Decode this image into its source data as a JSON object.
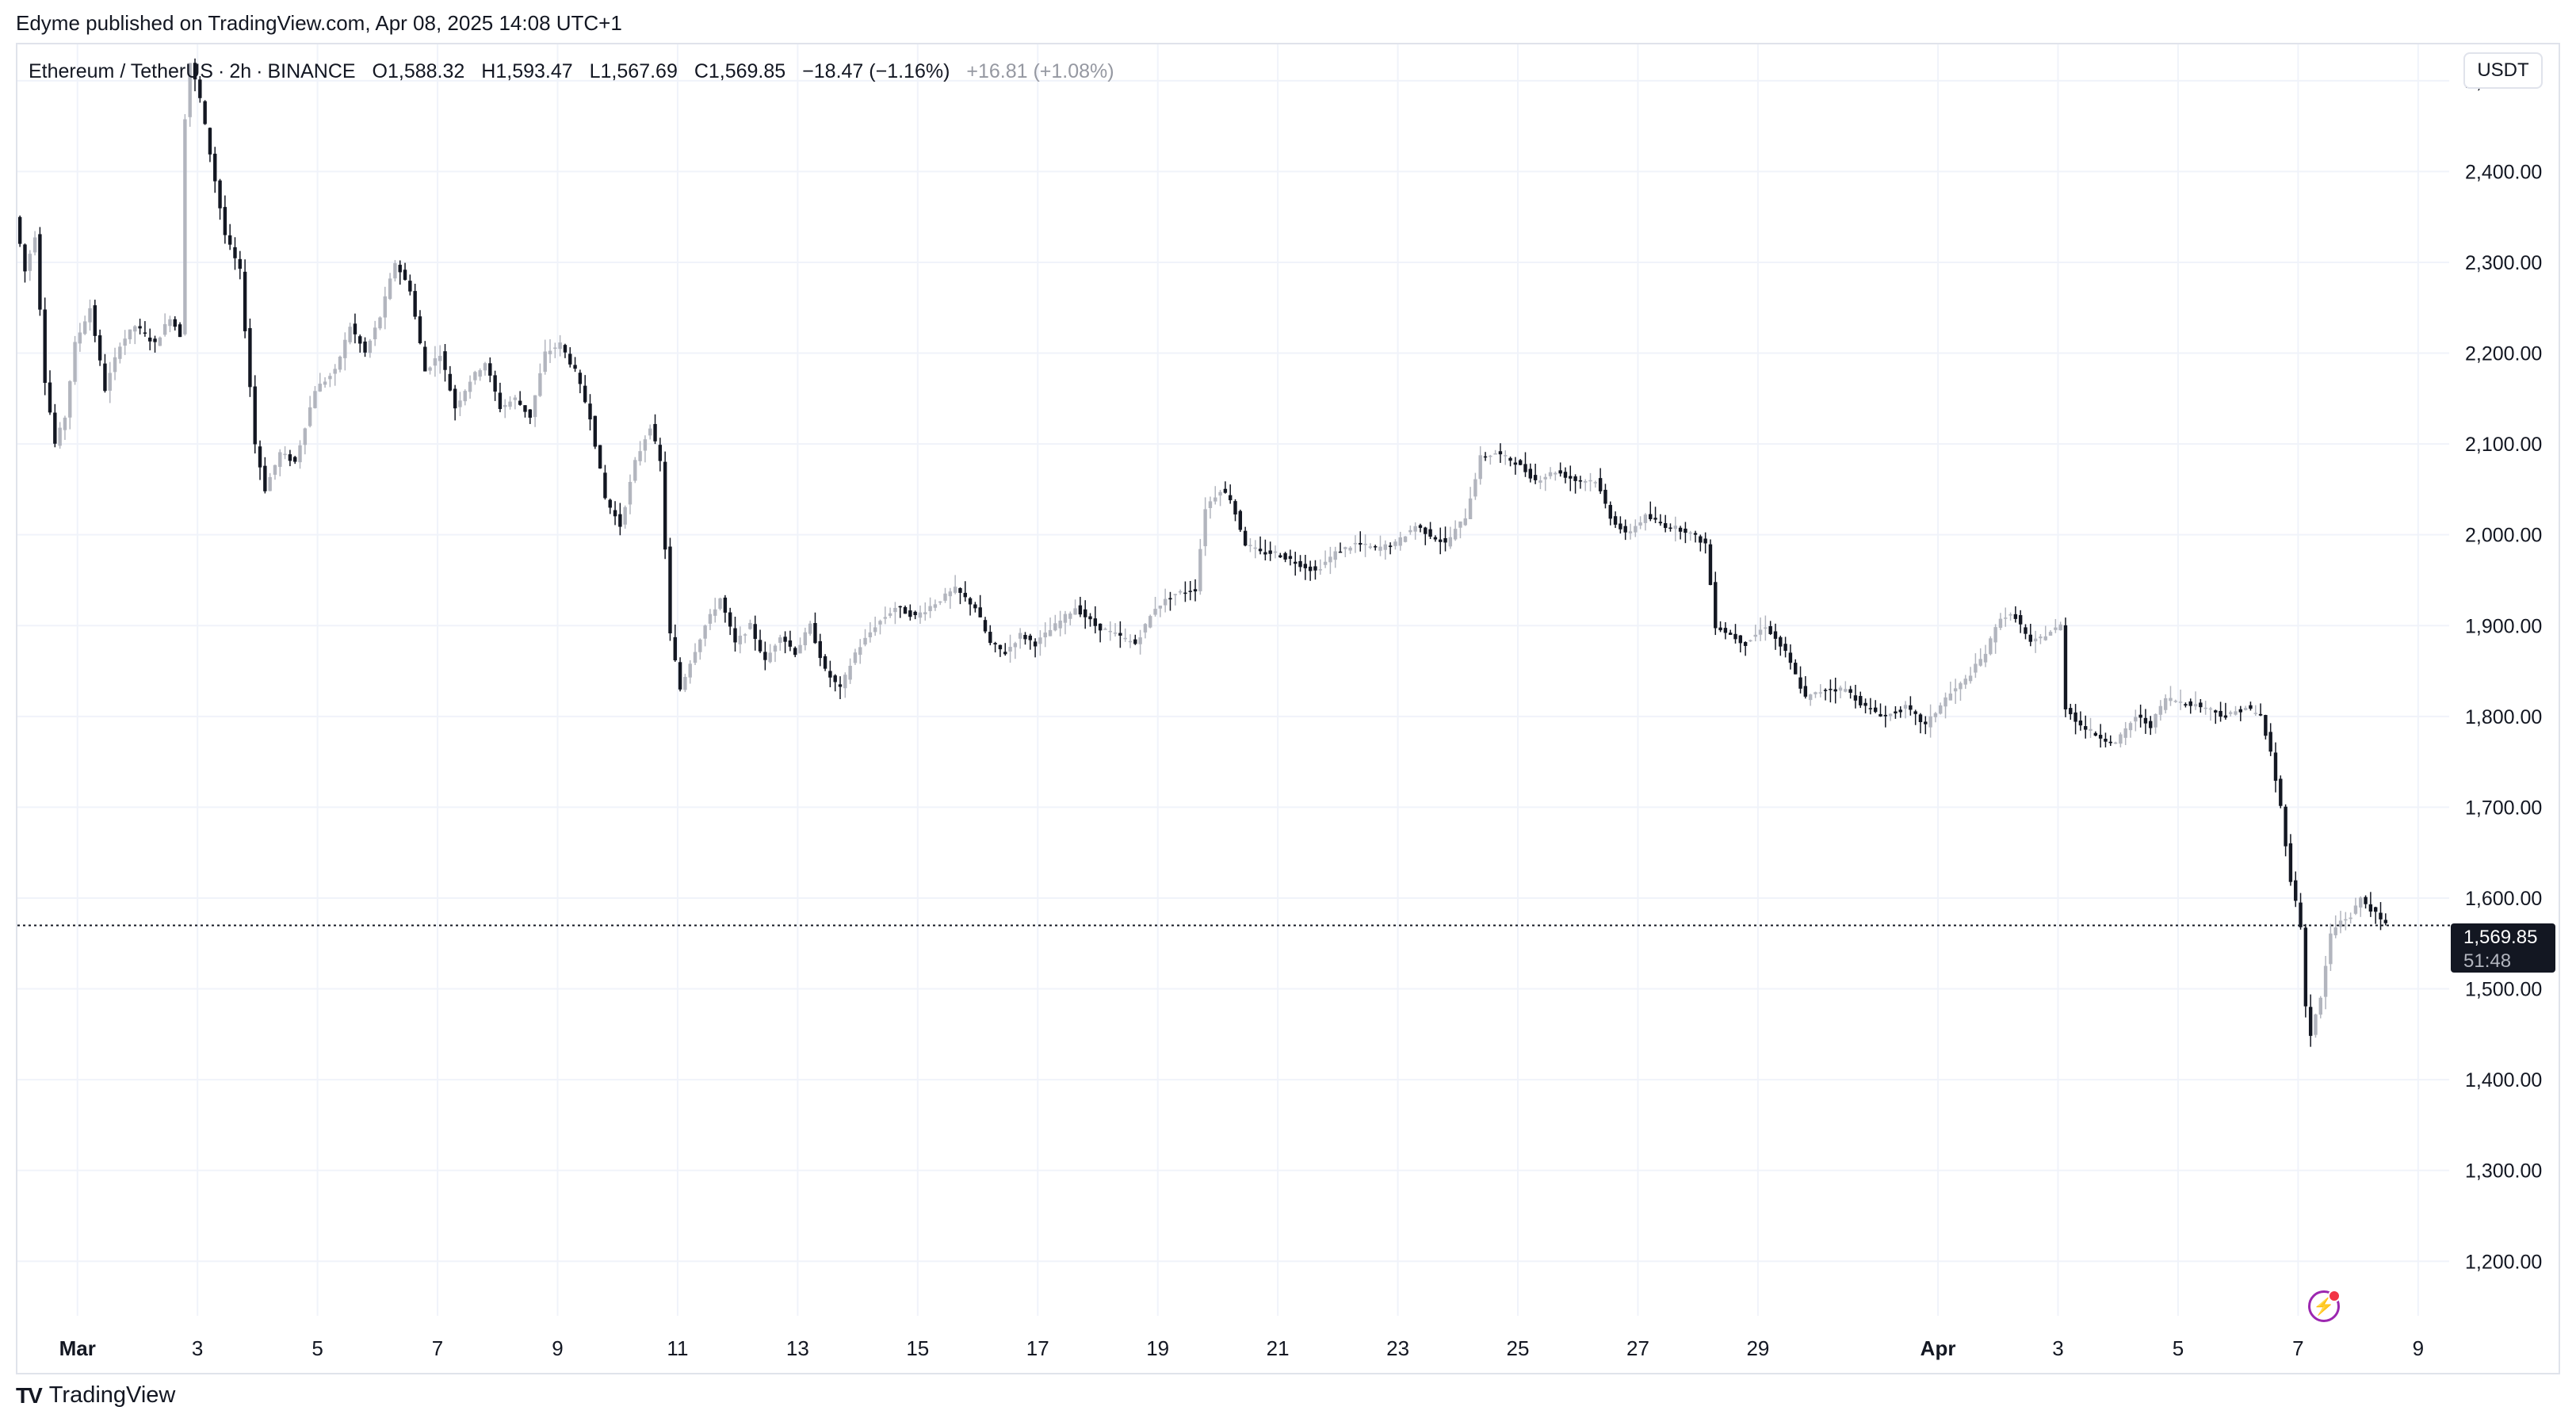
{
  "publisher": "Edyme published on TradingView.com, Apr 08, 2025 14:08 UTC+1",
  "legend": {
    "symbol": "Ethereum / TetherUS",
    "interval": "2h",
    "exchange": "BINANCE",
    "open_label": "O",
    "open": "1,588.32",
    "high_label": "H",
    "high": "1,593.47",
    "low_label": "L",
    "low": "1,567.69",
    "close_label": "C",
    "close": "1,569.85",
    "change": "−18.47 (−1.16%)",
    "secondary_change": "+16.81 (+1.08%)"
  },
  "currency": "USDT",
  "last_price": {
    "value": "1,569.85",
    "countdown": "51:48"
  },
  "brand": {
    "name": "TradingView",
    "logo_icon": "tradingview-logo-icon"
  },
  "colors": {
    "up": "#b2b5be",
    "down": "#131722",
    "grid": "#f0f3fa",
    "text": "#131722"
  },
  "chart_data": {
    "type": "candlestick",
    "ylim": [
      1140,
      2540
    ],
    "y_ticks": [
      "2,500.00",
      "2,400.00",
      "2,300.00",
      "2,200.00",
      "2,100.00",
      "2,000.00",
      "1,900.00",
      "1,800.00",
      "1,700.00",
      "1,600.00",
      "1,500.00",
      "1,400.00",
      "1,300.00",
      "1,200.00"
    ],
    "x_ticks": [
      {
        "label": "Mar",
        "date": "2025-03-01"
      },
      {
        "label": "3",
        "date": "2025-03-03"
      },
      {
        "label": "5",
        "date": "2025-03-05"
      },
      {
        "label": "7",
        "date": "2025-03-07"
      },
      {
        "label": "9",
        "date": "2025-03-09"
      },
      {
        "label": "11",
        "date": "2025-03-11"
      },
      {
        "label": "13",
        "date": "2025-03-13"
      },
      {
        "label": "15",
        "date": "2025-03-15"
      },
      {
        "label": "17",
        "date": "2025-03-17"
      },
      {
        "label": "19",
        "date": "2025-03-19"
      },
      {
        "label": "21",
        "date": "2025-03-21"
      },
      {
        "label": "23",
        "date": "2025-03-23"
      },
      {
        "label": "25",
        "date": "2025-03-25"
      },
      {
        "label": "27",
        "date": "2025-03-27"
      },
      {
        "label": "29",
        "date": "2025-03-29"
      },
      {
        "label": "Apr",
        "date": "2025-04-01"
      },
      {
        "label": "3",
        "date": "2025-04-03"
      },
      {
        "label": "5",
        "date": "2025-04-05"
      },
      {
        "label": "7",
        "date": "2025-04-07"
      },
      {
        "label": "9",
        "date": "2025-04-09"
      }
    ],
    "last_close": 1569.85,
    "price_path": [
      [
        "2025-02-28T00:00",
        2350
      ],
      [
        "2025-02-28T04:00",
        2290
      ],
      [
        "2025-02-28T08:00",
        2330
      ],
      [
        "2025-02-28T12:00",
        2170
      ],
      [
        "2025-02-28T16:00",
        2100
      ],
      [
        "2025-02-28T20:00",
        2130
      ],
      [
        "2025-03-01T00:00",
        2210
      ],
      [
        "2025-03-01T06:00",
        2250
      ],
      [
        "2025-03-01T12:00",
        2160
      ],
      [
        "2025-03-01T18:00",
        2210
      ],
      [
        "2025-03-02T00:00",
        2230
      ],
      [
        "2025-03-02T08:00",
        2210
      ],
      [
        "2025-03-02T14:00",
        2240
      ],
      [
        "2025-03-02T18:00",
        2220
      ],
      [
        "2025-03-02T20:00",
        2460
      ],
      [
        "2025-03-02T22:00",
        2520
      ],
      [
        "2025-03-03T02:00",
        2480
      ],
      [
        "2025-03-03T06:00",
        2420
      ],
      [
        "2025-03-03T12:00",
        2330
      ],
      [
        "2025-03-03T18:00",
        2290
      ],
      [
        "2025-03-04T00:00",
        2100
      ],
      [
        "2025-03-04T04:00",
        2050
      ],
      [
        "2025-03-04T10:00",
        2090
      ],
      [
        "2025-03-04T16:00",
        2080
      ],
      [
        "2025-03-05T00:00",
        2160
      ],
      [
        "2025-03-05T08:00",
        2180
      ],
      [
        "2025-03-05T14:00",
        2230
      ],
      [
        "2025-03-05T20:00",
        2200
      ],
      [
        "2025-03-06T02:00",
        2240
      ],
      [
        "2025-03-06T08:00",
        2300
      ],
      [
        "2025-03-06T14:00",
        2270
      ],
      [
        "2025-03-06T20:00",
        2180
      ],
      [
        "2025-03-07T02:00",
        2200
      ],
      [
        "2025-03-07T08:00",
        2140
      ],
      [
        "2025-03-07T14:00",
        2170
      ],
      [
        "2025-03-07T20:00",
        2190
      ],
      [
        "2025-03-08T02:00",
        2140
      ],
      [
        "2025-03-08T08:00",
        2150
      ],
      [
        "2025-03-08T14:00",
        2130
      ],
      [
        "2025-03-08T20:00",
        2200
      ],
      [
        "2025-03-09T02:00",
        2210
      ],
      [
        "2025-03-09T08:00",
        2180
      ],
      [
        "2025-03-09T14:00",
        2130
      ],
      [
        "2025-03-09T20:00",
        2040
      ],
      [
        "2025-03-10T02:00",
        2010
      ],
      [
        "2025-03-10T08:00",
        2080
      ],
      [
        "2025-03-10T14:00",
        2120
      ],
      [
        "2025-03-10T18:00",
        2080
      ],
      [
        "2025-03-10T22:00",
        1890
      ],
      [
        "2025-03-11T02:00",
        1830
      ],
      [
        "2025-03-11T06:00",
        1860
      ],
      [
        "2025-03-11T12:00",
        1900
      ],
      [
        "2025-03-11T18:00",
        1930
      ],
      [
        "2025-03-12T00:00",
        1880
      ],
      [
        "2025-03-12T06:00",
        1900
      ],
      [
        "2025-03-12T12:00",
        1860
      ],
      [
        "2025-03-12T18:00",
        1890
      ],
      [
        "2025-03-13T00:00",
        1870
      ],
      [
        "2025-03-13T06:00",
        1900
      ],
      [
        "2025-03-13T12:00",
        1850
      ],
      [
        "2025-03-13T18:00",
        1830
      ],
      [
        "2025-03-14T00:00",
        1870
      ],
      [
        "2025-03-14T08:00",
        1900
      ],
      [
        "2025-03-14T16:00",
        1920
      ],
      [
        "2025-03-15T00:00",
        1910
      ],
      [
        "2025-03-15T08:00",
        1925
      ],
      [
        "2025-03-15T16:00",
        1940
      ],
      [
        "2025-03-16T00:00",
        1920
      ],
      [
        "2025-03-16T06:00",
        1880
      ],
      [
        "2025-03-16T12:00",
        1870
      ],
      [
        "2025-03-16T18:00",
        1890
      ],
      [
        "2025-03-17T00:00",
        1880
      ],
      [
        "2025-03-17T08:00",
        1900
      ],
      [
        "2025-03-17T16:00",
        1920
      ],
      [
        "2025-03-18T00:00",
        1900
      ],
      [
        "2025-03-18T08:00",
        1890
      ],
      [
        "2025-03-18T16:00",
        1880
      ],
      [
        "2025-03-19T00:00",
        1920
      ],
      [
        "2025-03-19T08:00",
        1935
      ],
      [
        "2025-03-19T16:00",
        1940
      ],
      [
        "2025-03-19T20:00",
        2030
      ],
      [
        "2025-03-20T02:00",
        2050
      ],
      [
        "2025-03-20T06:00",
        2040
      ],
      [
        "2025-03-20T12:00",
        1990
      ],
      [
        "2025-03-20T18:00",
        1980
      ],
      [
        "2025-03-21T00:00",
        1980
      ],
      [
        "2025-03-21T08:00",
        1970
      ],
      [
        "2025-03-21T16:00",
        1960
      ],
      [
        "2025-03-22T00:00",
        1980
      ],
      [
        "2025-03-22T08:00",
        1990
      ],
      [
        "2025-03-22T16:00",
        1985
      ],
      [
        "2025-03-23T00:00",
        1990
      ],
      [
        "2025-03-23T08:00",
        2010
      ],
      [
        "2025-03-23T14:00",
        2000
      ],
      [
        "2025-03-23T20:00",
        1990
      ],
      [
        "2025-03-24T04:00",
        2020
      ],
      [
        "2025-03-24T10:00",
        2085
      ],
      [
        "2025-03-24T16:00",
        2090
      ],
      [
        "2025-03-25T00:00",
        2080
      ],
      [
        "2025-03-25T08:00",
        2060
      ],
      [
        "2025-03-25T16:00",
        2070
      ],
      [
        "2025-03-26T00:00",
        2060
      ],
      [
        "2025-03-26T08:00",
        2060
      ],
      [
        "2025-03-26T14:00",
        2020
      ],
      [
        "2025-03-26T20:00",
        2000
      ],
      [
        "2025-03-27T04:00",
        2020
      ],
      [
        "2025-03-27T12:00",
        2010
      ],
      [
        "2025-03-27T20:00",
        2005
      ],
      [
        "2025-03-28T04:00",
        1990
      ],
      [
        "2025-03-28T08:00",
        1900
      ],
      [
        "2025-03-28T14:00",
        1890
      ],
      [
        "2025-03-28T20:00",
        1880
      ],
      [
        "2025-03-29T04:00",
        1900
      ],
      [
        "2025-03-29T12:00",
        1870
      ],
      [
        "2025-03-29T20:00",
        1820
      ],
      [
        "2025-03-30T04:00",
        1830
      ],
      [
        "2025-03-30T12:00",
        1830
      ],
      [
        "2025-03-30T20:00",
        1810
      ],
      [
        "2025-03-31T04:00",
        1800
      ],
      [
        "2025-03-31T12:00",
        1810
      ],
      [
        "2025-03-31T20:00",
        1790
      ],
      [
        "2025-04-01T04:00",
        1820
      ],
      [
        "2025-04-01T12:00",
        1840
      ],
      [
        "2025-04-01T20:00",
        1870
      ],
      [
        "2025-04-02T02:00",
        1910
      ],
      [
        "2025-04-02T08:00",
        1910
      ],
      [
        "2025-04-02T14:00",
        1880
      ],
      [
        "2025-04-02T20:00",
        1890
      ],
      [
        "2025-04-03T02:00",
        1900
      ],
      [
        "2025-04-03T04:00",
        1810
      ],
      [
        "2025-04-03T10:00",
        1790
      ],
      [
        "2025-04-03T16:00",
        1780
      ],
      [
        "2025-04-04T00:00",
        1770
      ],
      [
        "2025-04-04T08:00",
        1800
      ],
      [
        "2025-04-04T14:00",
        1790
      ],
      [
        "2025-04-04T20:00",
        1820
      ],
      [
        "2025-04-05T04:00",
        1815
      ],
      [
        "2025-04-05T12:00",
        1810
      ],
      [
        "2025-04-05T20:00",
        1800
      ],
      [
        "2025-04-06T04:00",
        1810
      ],
      [
        "2025-04-06T10:00",
        1800
      ],
      [
        "2025-04-06T14:00",
        1760
      ],
      [
        "2025-04-06T18:00",
        1700
      ],
      [
        "2025-04-06T22:00",
        1620
      ],
      [
        "2025-04-07T02:00",
        1570
      ],
      [
        "2025-04-07T04:00",
        1480
      ],
      [
        "2025-04-07T06:00",
        1450
      ],
      [
        "2025-04-07T10:00",
        1490
      ],
      [
        "2025-04-07T14:00",
        1560
      ],
      [
        "2025-04-07T18:00",
        1575
      ],
      [
        "2025-04-07T22:00",
        1580
      ],
      [
        "2025-04-08T02:00",
        1600
      ],
      [
        "2025-04-08T06:00",
        1588
      ],
      [
        "2025-04-08T12:00",
        1570
      ]
    ]
  }
}
